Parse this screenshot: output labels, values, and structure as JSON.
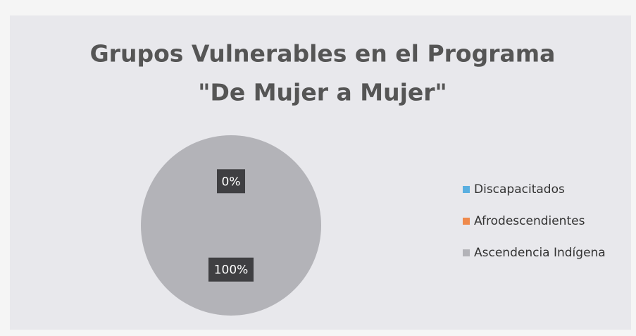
{
  "chart_data": {
    "type": "pie",
    "title": [
      "Grupos Vulnerables en el Programa",
      "\"De Mujer a Mujer\""
    ],
    "categories": [
      "Discapacitados",
      "Afrodescendientes",
      "Ascendencia Indígena"
    ],
    "values": [
      0,
      0,
      100
    ],
    "value_labels": [
      "0%",
      null,
      "100%"
    ],
    "colors": [
      "#5aafe0",
      "#ef8a4c",
      "#b3b3b8"
    ],
    "legend": "right"
  }
}
